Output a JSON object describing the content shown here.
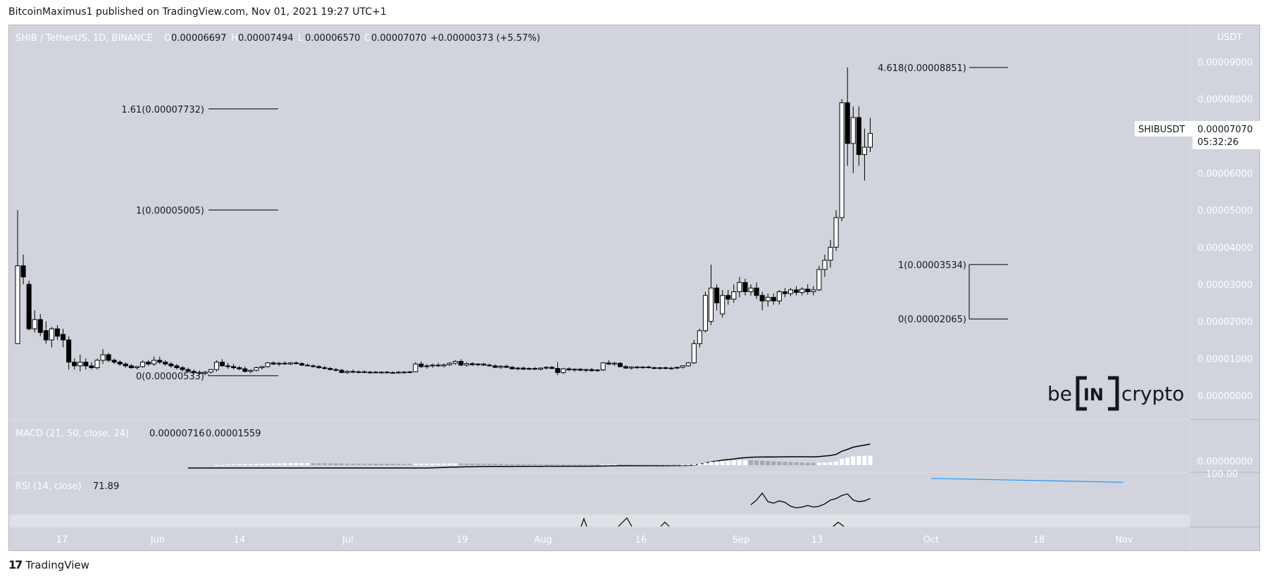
{
  "header": {
    "published": "BitcoinMaximus1 published on TradingView.com, Nov 01, 2021 19:27 UTC+1"
  },
  "footer": {
    "brand": "TradingView",
    "logo_glyph": "17"
  },
  "watermark": {
    "text_left": "be",
    "text_box": "IN",
    "text_right": "crypto"
  },
  "colors": {
    "pane_bg": "#d1d4dc",
    "axis_bg": "#d1d4dc",
    "candle_up": "#ffffff",
    "candle_down": "#000000",
    "rsi_trendline": "#2196f3",
    "macd_hist_up": "#ffffff",
    "macd_hist_down": "#a7a9ae"
  },
  "chart_data": {
    "type": "candlestick",
    "symbol_line": "SHIB / TetherUS, 1D, BINANCE",
    "ohlc_labels": [
      "O",
      "H",
      "L",
      "C"
    ],
    "ohlc_values": [
      "0.00006697",
      "0.00007494",
      "0.00006570",
      "0.00007070"
    ],
    "change": "+0.00000373 (+5.57%)",
    "currency": "USDT",
    "ylim": [
      0,
      9e-05
    ],
    "y_ticks": [
      "0.00009000",
      "0.00008000",
      "0.00007000",
      "0.00006000",
      "0.00005000",
      "0.00004000",
      "0.00003000",
      "0.00002000",
      "0.00001000",
      "0.00000000"
    ],
    "x_ticks": [
      "17",
      "Jun",
      "14",
      "Jul",
      "19",
      "Aug",
      "16",
      "Sep",
      "13",
      "Oct",
      "18",
      "Nov"
    ],
    "price_label": {
      "symbol": "SHIBUSDT",
      "price": "0.00007070",
      "countdown": "05:32:26"
    },
    "fib_left": [
      {
        "label": "1.61(0.00007732)",
        "value": 7.732e-05
      },
      {
        "label": "1(0.00005005)",
        "value": 5.005e-05
      },
      {
        "label": "0(0.00000533)",
        "value": 5.33e-06
      }
    ],
    "fib_right": [
      {
        "label": "4.618(0.00008851)",
        "value": 8.851e-05
      },
      {
        "label": "1(0.00003534)",
        "value": 3.534e-05
      },
      {
        "label": "0(0.00002065)",
        "value": 2.065e-05
      }
    ],
    "candles": [
      {
        "o": 1.4e-05,
        "h": 5e-05,
        "l": 1.4e-05,
        "c": 3.5e-05
      },
      {
        "o": 3.5e-05,
        "h": 3.8e-05,
        "l": 3e-05,
        "c": 3.2e-05
      },
      {
        "o": 3e-05,
        "h": 3.1e-05,
        "l": 1.75e-05,
        "c": 1.8e-05
      },
      {
        "o": 1.8e-05,
        "h": 2.3e-05,
        "l": 1.7e-05,
        "c": 2.05e-05
      },
      {
        "o": 2.05e-05,
        "h": 2.2e-05,
        "l": 1.6e-05,
        "c": 1.7e-05
      },
      {
        "o": 1.75e-05,
        "h": 2e-05,
        "l": 1.4e-05,
        "c": 1.5e-05
      },
      {
        "o": 1.5e-05,
        "h": 1.85e-05,
        "l": 1.3e-05,
        "c": 1.8e-05
      },
      {
        "o": 1.8e-05,
        "h": 1.9e-05,
        "l": 1.5e-05,
        "c": 1.6e-05
      },
      {
        "o": 1.65e-05,
        "h": 1.8e-05,
        "l": 1.3e-05,
        "c": 1.5e-05
      },
      {
        "o": 1.5e-05,
        "h": 1.6e-05,
        "l": 7e-06,
        "c": 9e-06
      },
      {
        "o": 9e-06,
        "h": 1e-05,
        "l": 7e-06,
        "c": 8e-06
      },
      {
        "o": 8e-06,
        "h": 1.1e-05,
        "l": 6.5e-06,
        "c": 9e-06
      },
      {
        "o": 9e-06,
        "h": 1e-05,
        "l": 7e-06,
        "c": 8e-06
      },
      {
        "o": 8e-06,
        "h": 9e-06,
        "l": 7e-06,
        "c": 7.5e-06
      },
      {
        "o": 7.5e-06,
        "h": 1e-05,
        "l": 7e-06,
        "c": 9.5e-06
      },
      {
        "o": 9.5e-06,
        "h": 1.25e-05,
        "l": 8.5e-06,
        "c": 1.1e-05
      },
      {
        "o": 1.1e-05,
        "h": 1.15e-05,
        "l": 9e-06,
        "c": 9.5e-06
      },
      {
        "o": 9.5e-06,
        "h": 1e-05,
        "l": 8.5e-06,
        "c": 9e-06
      },
      {
        "o": 9e-06,
        "h": 9.5e-06,
        "l": 8e-06,
        "c": 8.5e-06
      },
      {
        "o": 8.5e-06,
        "h": 9e-06,
        "l": 7.5e-06,
        "c": 8e-06
      },
      {
        "o": 8e-06,
        "h": 8.5e-06,
        "l": 7.2e-06,
        "c": 7.5e-06
      },
      {
        "o": 7.5e-06,
        "h": 8e-06,
        "l": 7e-06,
        "c": 7.8e-06
      },
      {
        "o": 7.8e-06,
        "h": 9.5e-06,
        "l": 7.5e-06,
        "c": 9e-06
      },
      {
        "o": 9e-06,
        "h": 9.5e-06,
        "l": 8e-06,
        "c": 8.5e-06
      },
      {
        "o": 8.5e-06,
        "h": 1.05e-05,
        "l": 8e-06,
        "c": 9.5e-06
      },
      {
        "o": 9.5e-06,
        "h": 1.05e-05,
        "l": 8.5e-06,
        "c": 9e-06
      },
      {
        "o": 9e-06,
        "h": 9.5e-06,
        "l": 8e-06,
        "c": 8.5e-06
      },
      {
        "o": 8.5e-06,
        "h": 9e-06,
        "l": 7.5e-06,
        "c": 8e-06
      },
      {
        "o": 8e-06,
        "h": 8.5e-06,
        "l": 7e-06,
        "c": 7.5e-06
      },
      {
        "o": 7.5e-06,
        "h": 8e-06,
        "l": 6.5e-06,
        "c": 7e-06
      },
      {
        "o": 7e-06,
        "h": 7.5e-06,
        "l": 6.2e-06,
        "c": 6.5e-06
      },
      {
        "o": 6.5e-06,
        "h": 7e-06,
        "l": 5.8e-06,
        "c": 6.2e-06
      },
      {
        "o": 6.2e-06,
        "h": 6.8e-06,
        "l": 5.5e-06,
        "c": 6e-06
      },
      {
        "o": 6e-06,
        "h": 6.6e-06,
        "l": 5.5e-06,
        "c": 6.3e-06
      },
      {
        "o": 6.3e-06,
        "h": 7.2e-06,
        "l": 6e-06,
        "c": 7e-06
      },
      {
        "o": 7e-06,
        "h": 9.5e-06,
        "l": 6.5e-06,
        "c": 9e-06
      },
      {
        "o": 9e-06,
        "h": 9.8e-06,
        "l": 7.8e-06,
        "c": 8e-06
      },
      {
        "o": 8e-06,
        "h": 8.8e-06,
        "l": 7.2e-06,
        "c": 7.8e-06
      },
      {
        "o": 7.8e-06,
        "h": 8.5e-06,
        "l": 7e-06,
        "c": 7.5e-06
      },
      {
        "o": 7.5e-06,
        "h": 8e-06,
        "l": 6.8e-06,
        "c": 7.2e-06
      },
      {
        "o": 7.2e-06,
        "h": 7.8e-06,
        "l": 6.2e-06,
        "c": 6.5e-06
      },
      {
        "o": 6.5e-06,
        "h": 7e-06,
        "l": 6e-06,
        "c": 6.8e-06
      },
      {
        "o": 6.8e-06,
        "h": 7.8e-06,
        "l": 6.5e-06,
        "c": 7.5e-06
      },
      {
        "o": 7.5e-06,
        "h": 8e-06,
        "l": 7e-06,
        "c": 7.8e-06
      },
      {
        "o": 7.8e-06,
        "h": 9e-06,
        "l": 7.5e-06,
        "c": 8.8e-06
      },
      {
        "o": 8.8e-06,
        "h": 9.2e-06,
        "l": 8.2e-06,
        "c": 8.5e-06
      },
      {
        "o": 8.5e-06,
        "h": 9e-06,
        "l": 8e-06,
        "c": 8.7e-06
      },
      {
        "o": 8.7e-06,
        "h": 9.2e-06,
        "l": 8.3e-06,
        "c": 8.5e-06
      },
      {
        "o": 8.5e-06,
        "h": 9e-06,
        "l": 8.2e-06,
        "c": 8.8e-06
      },
      {
        "o": 8.8e-06,
        "h": 9.2e-06,
        "l": 8.4e-06,
        "c": 8.6e-06
      },
      {
        "o": 8.6e-06,
        "h": 9e-06,
        "l": 8e-06,
        "c": 8.2e-06
      },
      {
        "o": 8.2e-06,
        "h": 8.6e-06,
        "l": 7.8e-06,
        "c": 8e-06
      },
      {
        "o": 8e-06,
        "h": 8.4e-06,
        "l": 7.5e-06,
        "c": 7.8e-06
      },
      {
        "o": 7.8e-06,
        "h": 8.2e-06,
        "l": 7.2e-06,
        "c": 7.5e-06
      },
      {
        "o": 7.5e-06,
        "h": 8e-06,
        "l": 7e-06,
        "c": 7.3e-06
      },
      {
        "o": 7.3e-06,
        "h": 7.7e-06,
        "l": 6.8e-06,
        "c": 7e-06
      },
      {
        "o": 7e-06,
        "h": 7.4e-06,
        "l": 6.5e-06,
        "c": 6.8e-06
      },
      {
        "o": 6.8e-06,
        "h": 7.2e-06,
        "l": 6e-06,
        "c": 6.2e-06
      },
      {
        "o": 6.2e-06,
        "h": 6.8e-06,
        "l": 5.8e-06,
        "c": 6.5e-06
      },
      {
        "o": 6.5e-06,
        "h": 7e-06,
        "l": 6e-06,
        "c": 6.3e-06
      },
      {
        "o": 6.3e-06,
        "h": 6.8e-06,
        "l": 6e-06,
        "c": 6.4e-06
      },
      {
        "o": 6.4e-06,
        "h": 6.8e-06,
        "l": 6e-06,
        "c": 6.2e-06
      },
      {
        "o": 6.2e-06,
        "h": 6.6e-06,
        "l": 5.9e-06,
        "c": 6.3e-06
      },
      {
        "o": 6.3e-06,
        "h": 6.6e-06,
        "l": 6e-06,
        "c": 6.2e-06
      },
      {
        "o": 6.2e-06,
        "h": 6.5e-06,
        "l": 5.9e-06,
        "c": 6.3e-06
      },
      {
        "o": 6.3e-06,
        "h": 6.6e-06,
        "l": 6e-06,
        "c": 6.2e-06
      },
      {
        "o": 6.2e-06,
        "h": 6.5e-06,
        "l": 5.9e-06,
        "c": 6.1e-06
      },
      {
        "o": 6.1e-06,
        "h": 6.6e-06,
        "l": 5.9e-06,
        "c": 6.3e-06
      },
      {
        "o": 6.3e-06,
        "h": 6.6e-06,
        "l": 6e-06,
        "c": 6.2e-06
      },
      {
        "o": 6.2e-06,
        "h": 6.6e-06,
        "l": 6e-06,
        "c": 6.4e-06
      },
      {
        "o": 6.4e-06,
        "h": 9e-06,
        "l": 6.3e-06,
        "c": 8.5e-06
      },
      {
        "o": 8.5e-06,
        "h": 9.2e-06,
        "l": 7.5e-06,
        "c": 7.8e-06
      },
      {
        "o": 7.8e-06,
        "h": 8.5e-06,
        "l": 7.2e-06,
        "c": 8e-06
      },
      {
        "o": 8e-06,
        "h": 8.6e-06,
        "l": 7.5e-06,
        "c": 8.2e-06
      },
      {
        "o": 8.2e-06,
        "h": 8.8e-06,
        "l": 7.7e-06,
        "c": 8e-06
      },
      {
        "o": 8e-06,
        "h": 8.6e-06,
        "l": 7.6e-06,
        "c": 8.3e-06
      },
      {
        "o": 8.3e-06,
        "h": 9e-06,
        "l": 8e-06,
        "c": 8.7e-06
      },
      {
        "o": 8.7e-06,
        "h": 9.5e-06,
        "l": 8.3e-06,
        "c": 9.2e-06
      },
      {
        "o": 9.2e-06,
        "h": 9.8e-06,
        "l": 8e-06,
        "c": 8.2e-06
      },
      {
        "o": 8.2e-06,
        "h": 9e-06,
        "l": 7.8e-06,
        "c": 8.6e-06
      },
      {
        "o": 8.6e-06,
        "h": 9e-06,
        "l": 8e-06,
        "c": 8.3e-06
      },
      {
        "o": 8.3e-06,
        "h": 8.7e-06,
        "l": 7.9e-06,
        "c": 8.5e-06
      },
      {
        "o": 8.5e-06,
        "h": 8.8e-06,
        "l": 8e-06,
        "c": 8.2e-06
      },
      {
        "o": 8.2e-06,
        "h": 8.6e-06,
        "l": 7.8e-06,
        "c": 8e-06
      },
      {
        "o": 8e-06,
        "h": 8.4e-06,
        "l": 7.4e-06,
        "c": 7.6e-06
      },
      {
        "o": 7.6e-06,
        "h": 8.2e-06,
        "l": 7.2e-06,
        "c": 7.9e-06
      },
      {
        "o": 7.9e-06,
        "h": 8.3e-06,
        "l": 7.4e-06,
        "c": 7.6e-06
      },
      {
        "o": 7.6e-06,
        "h": 8e-06,
        "l": 7e-06,
        "c": 7.2e-06
      },
      {
        "o": 7.2e-06,
        "h": 7.7e-06,
        "l": 6.8e-06,
        "c": 7.4e-06
      },
      {
        "o": 7.4e-06,
        "h": 7.8e-06,
        "l": 6.9e-06,
        "c": 7.1e-06
      },
      {
        "o": 7.1e-06,
        "h": 7.6e-06,
        "l": 6.8e-06,
        "c": 7.3e-06
      },
      {
        "o": 7.3e-06,
        "h": 7.7e-06,
        "l": 6.9e-06,
        "c": 7.1e-06
      },
      {
        "o": 7.1e-06,
        "h": 7.6e-06,
        "l": 6.8e-06,
        "c": 7.4e-06
      },
      {
        "o": 7.4e-06,
        "h": 7.9e-06,
        "l": 7e-06,
        "c": 7.6e-06
      },
      {
        "o": 7.6e-06,
        "h": 8e-06,
        "l": 7.1e-06,
        "c": 7.3e-06
      },
      {
        "o": 7.3e-06,
        "h": 9e-06,
        "l": 5.5e-06,
        "c": 6.2e-06
      },
      {
        "o": 6.2e-06,
        "h": 7.5e-06,
        "l": 5.8e-06,
        "c": 7.2e-06
      },
      {
        "o": 7.2e-06,
        "h": 7.6e-06,
        "l": 6.6e-06,
        "c": 6.9e-06
      },
      {
        "o": 6.9e-06,
        "h": 7.3e-06,
        "l": 6.4e-06,
        "c": 7.1e-06
      },
      {
        "o": 7.1e-06,
        "h": 7.4e-06,
        "l": 6.6e-06,
        "c": 6.8e-06
      },
      {
        "o": 6.8e-06,
        "h": 7.2e-06,
        "l": 6.3e-06,
        "c": 7e-06
      },
      {
        "o": 7e-06,
        "h": 7.4e-06,
        "l": 6.5e-06,
        "c": 6.7e-06
      },
      {
        "o": 6.7e-06,
        "h": 7.1e-06,
        "l": 6.4e-06,
        "c": 6.9e-06
      },
      {
        "o": 6.9e-06,
        "h": 9e-06,
        "l": 6.6e-06,
        "c": 8.8e-06
      },
      {
        "o": 8.8e-06,
        "h": 9.5e-06,
        "l": 8.2e-06,
        "c": 8.5e-06
      },
      {
        "o": 8.5e-06,
        "h": 9.1e-06,
        "l": 8e-06,
        "c": 8.7e-06
      },
      {
        "o": 8.7e-06,
        "h": 9e-06,
        "l": 7.6e-06,
        "c": 7.8e-06
      },
      {
        "o": 7.8e-06,
        "h": 8.2e-06,
        "l": 7.2e-06,
        "c": 7.4e-06
      },
      {
        "o": 7.4e-06,
        "h": 7.9e-06,
        "l": 7e-06,
        "c": 7.7e-06
      },
      {
        "o": 7.7e-06,
        "h": 8e-06,
        "l": 7.2e-06,
        "c": 7.5e-06
      },
      {
        "o": 7.5e-06,
        "h": 7.9e-06,
        "l": 7.2e-06,
        "c": 7.7e-06
      },
      {
        "o": 7.7e-06,
        "h": 8e-06,
        "l": 7.3e-06,
        "c": 7.5e-06
      },
      {
        "o": 7.5e-06,
        "h": 7.8e-06,
        "l": 7.1e-06,
        "c": 7.3e-06
      },
      {
        "o": 7.3e-06,
        "h": 7.7e-06,
        "l": 7e-06,
        "c": 7.5e-06
      },
      {
        "o": 7.5e-06,
        "h": 7.8e-06,
        "l": 7.1e-06,
        "c": 7.3e-06
      },
      {
        "o": 7.3e-06,
        "h": 7.7e-06,
        "l": 7e-06,
        "c": 7.4e-06
      },
      {
        "o": 7.4e-06,
        "h": 7.8e-06,
        "l": 7.1e-06,
        "c": 7.6e-06
      },
      {
        "o": 7.6e-06,
        "h": 8.2e-06,
        "l": 7.3e-06,
        "c": 8e-06
      },
      {
        "o": 8e-06,
        "h": 9e-06,
        "l": 7.8e-06,
        "c": 8.8e-06
      },
      {
        "o": 8.8e-06,
        "h": 1.5e-05,
        "l": 8.5e-06,
        "c": 1.4e-05
      },
      {
        "o": 1.4e-05,
        "h": 1.8e-05,
        "l": 1.3e-05,
        "c": 1.75e-05
      },
      {
        "o": 1.75e-05,
        "h": 2.8e-05,
        "l": 1.7e-05,
        "c": 2.7e-05
      },
      {
        "o": 2e-05,
        "h": 3.53e-05,
        "l": 1.9e-05,
        "c": 2.9e-05
      },
      {
        "o": 2.9e-05,
        "h": 3e-05,
        "l": 2.3e-05,
        "c": 2.5e-05
      },
      {
        "o": 2.2e-05,
        "h": 2.85e-05,
        "l": 2.1e-05,
        "c": 2.7e-05
      },
      {
        "o": 2.7e-05,
        "h": 2.85e-05,
        "l": 2.45e-05,
        "c": 2.6e-05
      },
      {
        "o": 2.6e-05,
        "h": 3e-05,
        "l": 2.5e-05,
        "c": 2.8e-05
      },
      {
        "o": 2.8e-05,
        "h": 3.2e-05,
        "l": 2.65e-05,
        "c": 3.05e-05
      },
      {
        "o": 3.05e-05,
        "h": 3.15e-05,
        "l": 2.7e-05,
        "c": 2.8e-05
      },
      {
        "o": 2.8e-05,
        "h": 3e-05,
        "l": 2.7e-05,
        "c": 2.9e-05
      },
      {
        "o": 2.9e-05,
        "h": 3.05e-05,
        "l": 2.6e-05,
        "c": 2.7e-05
      },
      {
        "o": 2.7e-05,
        "h": 2.8e-05,
        "l": 2.3e-05,
        "c": 2.55e-05
      },
      {
        "o": 2.55e-05,
        "h": 2.75e-05,
        "l": 2.4e-05,
        "c": 2.65e-05
      },
      {
        "o": 2.65e-05,
        "h": 2.75e-05,
        "l": 2.45e-05,
        "c": 2.55e-05
      },
      {
        "o": 2.55e-05,
        "h": 2.85e-05,
        "l": 2.45e-05,
        "c": 2.8e-05
      },
      {
        "o": 2.8e-05,
        "h": 2.9e-05,
        "l": 2.65e-05,
        "c": 2.75e-05
      },
      {
        "o": 2.75e-05,
        "h": 2.9e-05,
        "l": 2.68e-05,
        "c": 2.85e-05
      },
      {
        "o": 2.85e-05,
        "h": 2.95e-05,
        "l": 2.7e-05,
        "c": 2.78e-05
      },
      {
        "o": 2.78e-05,
        "h": 2.92e-05,
        "l": 2.7e-05,
        "c": 2.87e-05
      },
      {
        "o": 2.87e-05,
        "h": 3e-05,
        "l": 2.72e-05,
        "c": 2.8e-05
      },
      {
        "o": 2.8e-05,
        "h": 2.95e-05,
        "l": 2.7e-05,
        "c": 2.85e-05
      },
      {
        "o": 2.85e-05,
        "h": 3.5e-05,
        "l": 2.82e-05,
        "c": 3.4e-05
      },
      {
        "o": 3.4e-05,
        "h": 3.8e-05,
        "l": 3.2e-05,
        "c": 3.65e-05
      },
      {
        "o": 3.65e-05,
        "h": 4.2e-05,
        "l": 3.45e-05,
        "c": 4e-05
      },
      {
        "o": 4e-05,
        "h": 5e-05,
        "l": 3.9e-05,
        "c": 4.8e-05
      },
      {
        "o": 4.8e-05,
        "h": 8e-05,
        "l": 4.7e-05,
        "c": 7.9e-05
      },
      {
        "o": 7.9e-05,
        "h": 8.85e-05,
        "l": 6.2e-05,
        "c": 6.8e-05
      },
      {
        "o": 6.8e-05,
        "h": 7.8e-05,
        "l": 6e-05,
        "c": 7.5e-05
      },
      {
        "o": 7.5e-05,
        "h": 7.8e-05,
        "l": 6.2e-05,
        "c": 6.5e-05
      },
      {
        "o": 6.5e-05,
        "h": 7.2e-05,
        "l": 5.8e-05,
        "c": 6.7e-05
      },
      {
        "o": 6.7e-05,
        "h": 7.49e-05,
        "l": 6.57e-05,
        "c": 7.07e-05
      }
    ],
    "macd": {
      "label": "MACD (21, 50, close, 24)",
      "values": [
        "0.00000716",
        "0.00001559"
      ],
      "axis_label": "0.00000000",
      "line_start_index": 30
    },
    "rsi": {
      "label": "RSI (14, close)",
      "value": "71.89",
      "axis_label": "100.00",
      "values": [
        58,
        64,
        73,
        62,
        60,
        63,
        61,
        56,
        54,
        55,
        57,
        55,
        56,
        59,
        64,
        66,
        70,
        72,
        64,
        62,
        63,
        66
      ],
      "trendline": [
        92,
        87
      ]
    }
  }
}
